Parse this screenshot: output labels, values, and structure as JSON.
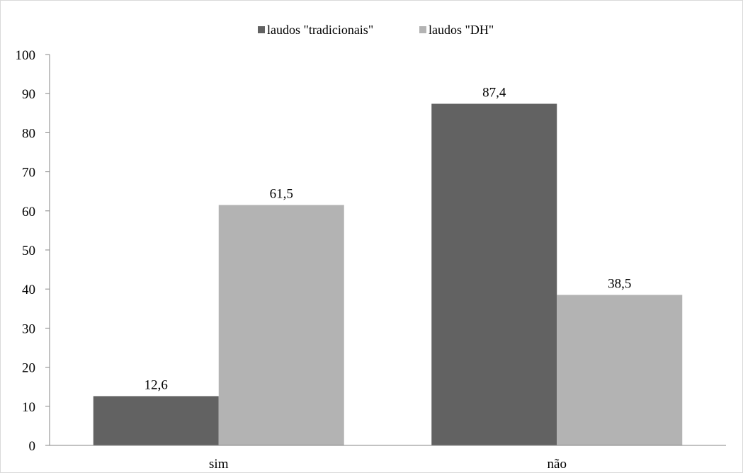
{
  "chart_data": {
    "type": "bar",
    "categories": [
      "sim",
      "não"
    ],
    "series": [
      {
        "name": "laudos \"tradicionais\"",
        "values": [
          12.6,
          87.4
        ],
        "labels": [
          "12,6",
          "87,4"
        ],
        "color": "#626262"
      },
      {
        "name": "laudos \"DH\"",
        "values": [
          61.5,
          38.5
        ],
        "labels": [
          "61,5",
          "38,5"
        ],
        "color": "#b3b3b3"
      }
    ],
    "ylim": [
      0,
      100
    ],
    "yticks": [
      "0",
      "10",
      "20",
      "30",
      "40",
      "50",
      "60",
      "70",
      "80",
      "90",
      "100"
    ],
    "legend_position": "top-center",
    "grid": false,
    "axis_color": "#868686"
  }
}
